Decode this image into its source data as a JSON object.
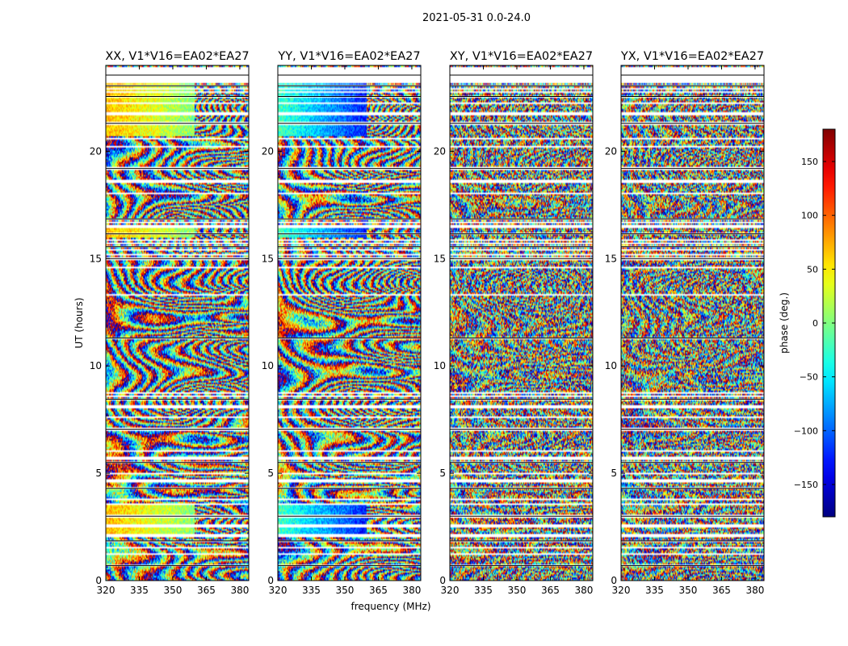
{
  "figure": {
    "suptitle": "2021-05-31 0.0-24.0",
    "colormap": "jet",
    "background": "#ffffff"
  },
  "chart_data": {
    "type": "heatmap",
    "shared_xlabel": "frequency (MHz)",
    "shared_ylabel": "UT (hours)",
    "xlim": [
      320,
      384
    ],
    "ylim": [
      0,
      24
    ],
    "xticks": [
      320,
      335,
      350,
      365,
      380
    ],
    "yticks": [
      0,
      5,
      10,
      15,
      20
    ],
    "clim": [
      -180,
      180
    ],
    "colorbar": {
      "label": "phase (deg.)",
      "ticks": [
        -150,
        -100,
        -50,
        0,
        50,
        100,
        150
      ],
      "tick_labels": [
        "−150",
        "−100",
        "−50",
        "0",
        "50",
        "100",
        "150"
      ]
    },
    "panels": [
      {
        "title": "XX, V1*V16=EA02*EA27",
        "ylabel": "UT (hours)",
        "xlabel": ""
      },
      {
        "title": "YY, V1*V16=EA02*EA27",
        "ylabel": "",
        "xlabel": "frequency (MHz)"
      },
      {
        "title": "XY, V1*V16=EA02*EA27",
        "ylabel": "",
        "xlabel": ""
      },
      {
        "title": "YX, V1*V16=EA02*EA27",
        "ylabel": "",
        "xlabel": ""
      }
    ],
    "flagged_rows_hours": [
      0.7,
      1.25,
      1.55,
      1.85,
      2.1,
      2.55,
      3.0,
      3.55,
      3.8,
      4.3,
      4.65,
      5.0,
      5.5,
      5.72,
      6.05,
      7.05,
      7.6,
      8.1,
      8.45,
      8.6,
      8.75,
      11.3,
      13.3,
      14.6,
      15.0,
      15.2,
      15.4,
      15.55,
      15.7,
      15.85,
      16.15,
      16.5,
      16.7,
      16.85,
      18.05,
      18.6,
      19.2,
      20.2,
      20.6,
      21.3,
      21.75,
      22.25,
      22.55,
      22.75,
      22.9,
      23.05,
      23.25,
      23.4,
      23.55,
      23.7,
      23.85
    ]
  }
}
